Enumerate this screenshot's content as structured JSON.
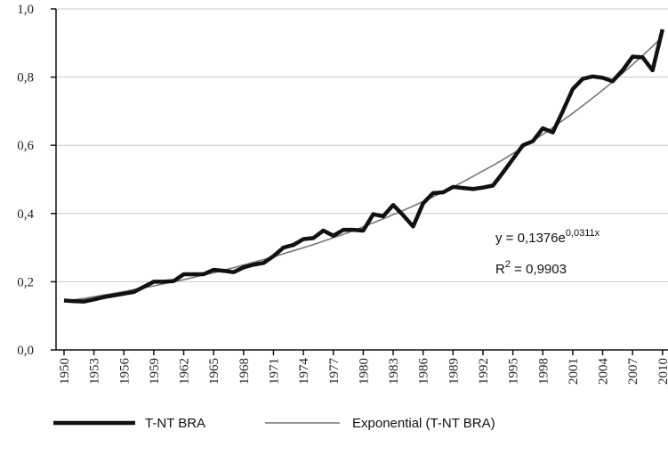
{
  "chart_data": {
    "type": "line",
    "x": [
      1950,
      1951,
      1952,
      1953,
      1954,
      1955,
      1956,
      1957,
      1958,
      1959,
      1960,
      1961,
      1962,
      1963,
      1964,
      1965,
      1966,
      1967,
      1968,
      1969,
      1970,
      1971,
      1972,
      1973,
      1974,
      1975,
      1976,
      1977,
      1978,
      1979,
      1980,
      1981,
      1982,
      1983,
      1984,
      1985,
      1986,
      1987,
      1988,
      1989,
      1990,
      1991,
      1992,
      1993,
      1994,
      1995,
      1996,
      1997,
      1998,
      1999,
      2000,
      2001,
      2002,
      2003,
      2004,
      2005,
      2006,
      2007,
      2008,
      2009,
      2010
    ],
    "series": [
      {
        "name": "T-NT BRA",
        "color": "#111111",
        "width": 4.5,
        "values": [
          0.145,
          0.143,
          0.142,
          0.148,
          0.155,
          0.16,
          0.165,
          0.17,
          0.185,
          0.2,
          0.2,
          0.202,
          0.222,
          0.222,
          0.222,
          0.235,
          0.232,
          0.228,
          0.242,
          0.25,
          0.255,
          0.275,
          0.3,
          0.308,
          0.325,
          0.328,
          0.35,
          0.335,
          0.352,
          0.352,
          0.35,
          0.398,
          0.392,
          0.425,
          0.395,
          0.362,
          0.43,
          0.46,
          0.462,
          0.478,
          0.475,
          0.472,
          0.476,
          0.482,
          0.52,
          0.56,
          0.6,
          0.612,
          0.65,
          0.638,
          0.7,
          0.765,
          0.795,
          0.802,
          0.798,
          0.788,
          0.82,
          0.86,
          0.858,
          0.82,
          0.94
        ]
      },
      {
        "name": "Exponential (T-NT BRA)",
        "color": "#777777",
        "width": 1.6,
        "values": [
          0.142,
          0.147,
          0.151,
          0.156,
          0.161,
          0.166,
          0.171,
          0.177,
          0.182,
          0.188,
          0.194,
          0.2,
          0.206,
          0.213,
          0.22,
          0.226,
          0.234,
          0.241,
          0.249,
          0.257,
          0.265,
          0.273,
          0.282,
          0.291,
          0.3,
          0.309,
          0.319,
          0.329,
          0.339,
          0.35,
          0.361,
          0.373,
          0.384,
          0.397,
          0.409,
          0.422,
          0.435,
          0.449,
          0.463,
          0.478,
          0.493,
          0.509,
          0.525,
          0.541,
          0.558,
          0.576,
          0.594,
          0.613,
          0.632,
          0.652,
          0.673,
          0.694,
          0.716,
          0.739,
          0.762,
          0.786,
          0.811,
          0.837,
          0.863,
          0.89,
          0.919
        ]
      }
    ],
    "xlim": [
      1949.2,
      2010.55
    ],
    "xticks": [
      1950,
      1953,
      1956,
      1959,
      1962,
      1965,
      1968,
      1971,
      1974,
      1977,
      1980,
      1983,
      1986,
      1989,
      1992,
      1995,
      1998,
      2001,
      2004,
      2007,
      2010
    ],
    "ylim": [
      0,
      1
    ],
    "yticks": [
      {
        "value": 0,
        "label": "0,0"
      },
      {
        "value": 0.2,
        "label": "0,2"
      },
      {
        "value": 0.4,
        "label": "0,4"
      },
      {
        "value": 0.6,
        "label": "0,6"
      },
      {
        "value": 0.8,
        "label": "0,8"
      },
      {
        "value": 1,
        "label": "1,0"
      }
    ],
    "grid": true,
    "annotations": [
      {
        "text": "y = 0,1376e",
        "superscript": "0,0311x"
      },
      {
        "text": "R",
        "superscript": "2",
        "suffix": " = 0,9903"
      }
    ]
  }
}
